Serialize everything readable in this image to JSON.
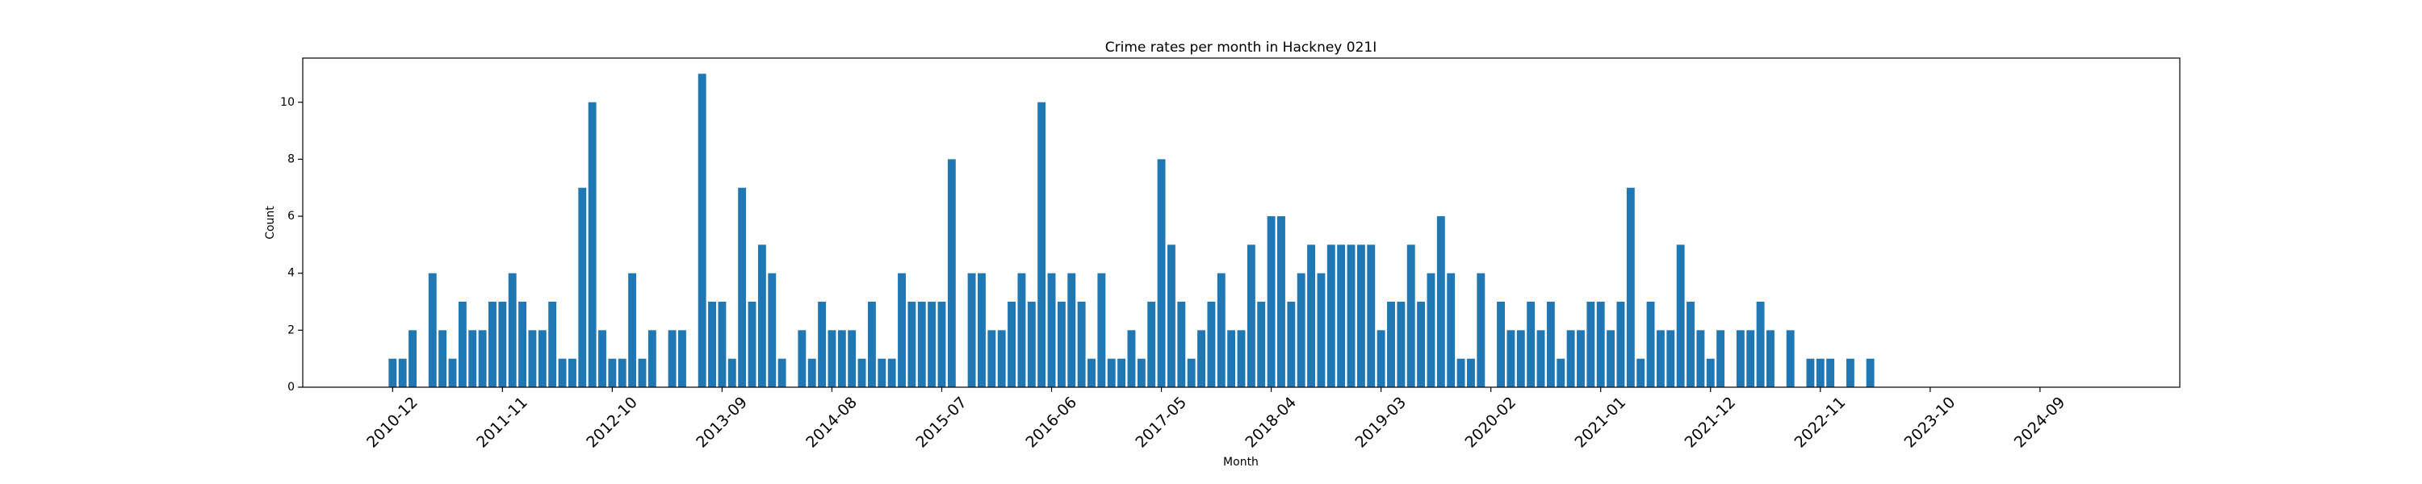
{
  "chart_data": {
    "type": "bar",
    "title": "Crime rates per month in Hackney 021I",
    "x_label": "Month",
    "y_label": "Count",
    "color": "#1f77b4",
    "x": [
      "2010-12",
      "2011-01",
      "2011-02",
      "2011-04",
      "2011-05",
      "2011-06",
      "2011-07",
      "2011-08",
      "2011-09",
      "2011-10",
      "2011-11",
      "2011-12",
      "2012-01",
      "2012-02",
      "2012-03",
      "2012-04",
      "2012-05",
      "2012-06",
      "2012-07",
      "2012-08",
      "2012-09",
      "2012-10",
      "2012-11",
      "2012-12",
      "2013-01",
      "2013-02",
      "2013-04",
      "2013-05",
      "2013-07",
      "2013-08",
      "2013-09",
      "2013-10",
      "2013-11",
      "2013-12",
      "2014-01",
      "2014-02",
      "2014-03",
      "2014-05",
      "2014-06",
      "2014-07",
      "2014-08",
      "2014-09",
      "2014-10",
      "2014-11",
      "2014-12",
      "2015-01",
      "2015-02",
      "2015-03",
      "2015-04",
      "2015-05",
      "2015-06",
      "2015-07",
      "2015-08",
      "2015-10",
      "2015-11",
      "2015-12",
      "2016-01",
      "2016-02",
      "2016-03",
      "2016-04",
      "2016-05",
      "2016-06",
      "2016-07",
      "2016-08",
      "2016-09",
      "2016-10",
      "2016-11",
      "2016-12",
      "2017-01",
      "2017-02",
      "2017-03",
      "2017-04",
      "2017-05",
      "2017-06",
      "2017-07",
      "2017-08",
      "2017-09",
      "2017-10",
      "2017-11",
      "2017-12",
      "2018-01",
      "2018-02",
      "2018-03",
      "2018-04",
      "2018-05",
      "2018-06",
      "2018-07",
      "2018-08",
      "2018-09",
      "2018-10",
      "2018-11",
      "2018-12",
      "2019-01",
      "2019-02",
      "2019-03",
      "2019-04",
      "2019-05",
      "2019-06",
      "2019-07",
      "2019-08",
      "2019-09",
      "2019-10",
      "2019-11",
      "2019-12",
      "2020-01",
      "2020-03",
      "2020-04",
      "2020-05",
      "2020-06",
      "2020-07",
      "2020-08",
      "2020-09",
      "2020-10",
      "2020-11",
      "2020-12",
      "2021-01",
      "2021-02",
      "2021-03",
      "2021-04",
      "2021-05",
      "2021-06",
      "2021-07",
      "2021-08",
      "2021-09",
      "2021-10",
      "2021-11",
      "2021-12",
      "2022-01",
      "2022-03",
      "2022-04",
      "2022-05",
      "2022-06",
      "2022-08",
      "2022-10",
      "2022-11",
      "2022-12",
      "2023-02",
      "2023-04"
    ],
    "values": [
      1,
      1,
      2,
      4,
      2,
      1,
      3,
      2,
      2,
      3,
      3,
      4,
      3,
      2,
      2,
      3,
      1,
      1,
      7,
      10,
      2,
      1,
      1,
      4,
      1,
      2,
      2,
      2,
      11,
      3,
      3,
      1,
      7,
      3,
      5,
      4,
      1,
      2,
      1,
      3,
      2,
      2,
      2,
      1,
      3,
      1,
      1,
      4,
      3,
      3,
      3,
      3,
      8,
      4,
      4,
      2,
      2,
      3,
      4,
      3,
      10,
      4,
      3,
      4,
      3,
      1,
      4,
      1,
      1,
      2,
      1,
      3,
      8,
      5,
      3,
      1,
      2,
      3,
      4,
      2,
      2,
      5,
      3,
      6,
      6,
      3,
      4,
      5,
      4,
      5,
      5,
      5,
      5,
      5,
      2,
      3,
      3,
      5,
      3,
      4,
      6,
      4,
      1,
      1,
      4,
      3,
      2,
      2,
      3,
      2,
      3,
      1,
      2,
      2,
      3,
      3,
      2,
      3,
      7,
      1,
      3,
      2,
      2,
      5,
      3,
      2,
      1,
      2,
      2,
      2,
      3,
      2,
      2,
      1,
      1,
      1,
      1,
      1
    ],
    "xlim": [
      "2010-03",
      "2025-11"
    ],
    "xticks": [
      "2010-12",
      "2011-11",
      "2012-10",
      "2013-09",
      "2014-08",
      "2015-07",
      "2016-06",
      "2017-05",
      "2018-04",
      "2019-03",
      "2020-02",
      "2021-01",
      "2021-12",
      "2022-11",
      "2023-10",
      "2024-09"
    ],
    "ylim": [
      0,
      11.55
    ],
    "yticks": [
      0,
      2,
      4,
      6,
      8,
      10
    ],
    "grid": false
  }
}
